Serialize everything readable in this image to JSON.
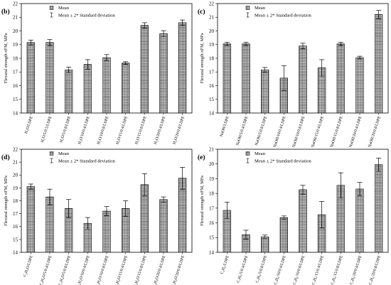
{
  "chart_data": [
    {
      "type": "bar",
      "panel_label": "(b)",
      "ylabel": "Flexural strength σFM, MPa",
      "ylim": [
        14,
        22
      ],
      "yticks": [
        14,
        15,
        16,
        17,
        18,
        19,
        20,
        21,
        22
      ],
      "legend": [
        "Mean",
        "Mean ± 2* Standard deviation"
      ],
      "legend_position": "top-left",
      "categories": [
        "H₂O/LDPE",
        "H₂O/5/0.5/LDPE",
        "H₂O/5/0.8/LDPE",
        "H₂O/10/0.4/LDPE",
        "H₂O/10/0.8/LDPE",
        "H₂O/15/0.4/LDPE",
        "H₂O/15/0.8/LDPE",
        "H₂O/20/0.4/LDPE",
        "H₂O/20/0.8/LDPE"
      ],
      "values": [
        19.15,
        19.15,
        17.15,
        17.55,
        18.05,
        17.65,
        20.4,
        19.8,
        20.6
      ],
      "error": [
        0.18,
        0.22,
        0.2,
        0.35,
        0.22,
        0.1,
        0.2,
        0.22,
        0.2
      ]
    },
    {
      "type": "bar",
      "panel_label": "(c)",
      "ylabel": "Flexural strength σFM, MPa",
      "ylim": [
        14,
        22
      ],
      "yticks": [
        14,
        15,
        16,
        17,
        18,
        19,
        20,
        21,
        22
      ],
      "legend": [
        "Mean",
        "Mean ± 2* Standard deviation"
      ],
      "legend_position": "top-left",
      "categories": [
        "NaOH/LDPE",
        "NaOH/5/0.4/LDPE",
        "NaOH/5/0.8/LDPE",
        "NaOH/10/0.4/LDPE",
        "NaOH/10/0.8/LDPE",
        "NaOH/15/0.4/LDPE",
        "NaOH/15/0.8/LDPE",
        "NaOH/20/0.4/LDPE",
        "NaOH/20/0.8/LDPE"
      ],
      "values": [
        19.05,
        19.05,
        17.15,
        16.55,
        18.9,
        17.3,
        19.05,
        18.05,
        21.2
      ],
      "error": [
        0.12,
        0.12,
        0.18,
        0.9,
        0.2,
        0.6,
        0.12,
        0.1,
        0.3
      ]
    },
    {
      "type": "bar",
      "panel_label": "(d)",
      "ylabel": "Flexural strength σFM, MPa",
      "ylim": [
        14,
        22
      ],
      "yticks": [
        14,
        15,
        16,
        17,
        18,
        19,
        20,
        21,
        22
      ],
      "legend": [
        "Mean",
        "Mean ± 2* Standard deviation"
      ],
      "legend_position": "top-left",
      "categories": [
        "C₂H₄O/LDPE",
        "C₂H₄O/5/0.4/LDPE",
        "C₂H₄O/5/0.8/LDPE",
        "C₂H₄O/10/0.4/LDPE",
        "C₂H₄O/10/0.8/LDPE",
        "C₂H₄O/15/0.4/LDPE",
        "C₂H₄O/15/0.8/LDPE",
        "C₂H₄O/20/0.4/LDPE",
        "C₂H₄O/20/0.8/LDPE"
      ],
      "values": [
        19.1,
        18.3,
        17.4,
        16.25,
        17.2,
        17.4,
        19.25,
        18.1,
        19.75
      ],
      "error": [
        0.2,
        0.6,
        0.7,
        0.45,
        0.35,
        0.6,
        0.85,
        0.2,
        0.85
      ]
    },
    {
      "type": "bar",
      "panel_label": "(e)",
      "ylabel": "Flexural strength σFM, MPa",
      "ylim": [
        14,
        21
      ],
      "yticks": [
        14,
        15,
        16,
        17,
        18,
        19,
        20,
        21
      ],
      "legend": [
        "Mean",
        "Mean ± 2* Standard deviation"
      ],
      "legend_position": "top-left",
      "categories": [
        "C₃H₆/LDPE",
        "C₃H₆/5/0.4/LDPE",
        "C₃H₆/5/0.8/LDPE",
        "C₃H₆/10/0.4/LDPE",
        "C₃H₆/10/0.8/LDPE",
        "C₃H₆/15/0.4/LDPE",
        "C₃H₆/15/0.8/LDPE",
        "C₃H₆/20/0.4/LDPE",
        "C₃H₆/20/0.8/LDPE"
      ],
      "values": [
        16.85,
        15.2,
        15.05,
        16.35,
        18.25,
        16.55,
        18.55,
        18.3,
        19.95
      ],
      "error": [
        0.55,
        0.3,
        0.12,
        0.12,
        0.3,
        0.9,
        0.85,
        0.45,
        0.45
      ]
    }
  ]
}
